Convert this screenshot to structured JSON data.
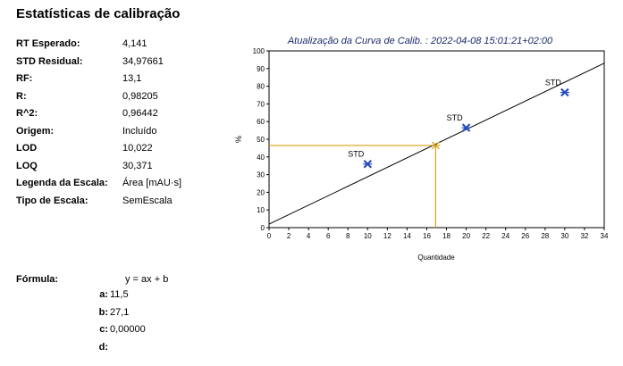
{
  "page_title": "Estatísticas de calibração",
  "stats": [
    {
      "label": "RT Esperado:",
      "value": "4,141"
    },
    {
      "label": "STD Residual:",
      "value": "34,97661"
    },
    {
      "label": "RF:",
      "value": "13,1"
    },
    {
      "label": "R:",
      "value": "0,98205"
    },
    {
      "label": "R^2:",
      "value": "0,96442"
    },
    {
      "label": "Origem:",
      "value": "Incluído"
    },
    {
      "label": "LOD",
      "value": "10,022"
    },
    {
      "label": "LOQ",
      "value": "30,371"
    },
    {
      "label": "Legenda da Escala:",
      "value": "Área [mAU·s]"
    },
    {
      "label": "Tipo de Escala:",
      "value": "SemEscala"
    }
  ],
  "formula": {
    "label": "Fórmula:",
    "expression": "y = ax + b",
    "coefficients": [
      {
        "name": "a:",
        "value": "11,5"
      },
      {
        "name": "b:",
        "value": "27,1"
      },
      {
        "name": "c:",
        "value": "0,00000"
      },
      {
        "name": "d:",
        "value": ""
      }
    ]
  },
  "chart_data": {
    "type": "scatter",
    "title": "Atualização da Curva de Calib. : 2022-04-08 15:01:21+02:00",
    "xlabel": "Quantidade",
    "ylabel": "%",
    "xlim": [
      0,
      34
    ],
    "ylim": [
      0,
      100
    ],
    "xticks": [
      0,
      2,
      4,
      6,
      8,
      10,
      12,
      14,
      16,
      18,
      20,
      22,
      24,
      26,
      28,
      30,
      32,
      34
    ],
    "yticks": [
      0,
      10,
      20,
      30,
      40,
      50,
      60,
      70,
      80,
      90,
      100
    ],
    "grid": false,
    "series": [
      {
        "name": "STD",
        "points": [
          [
            10,
            36
          ],
          [
            20,
            56.5
          ],
          [
            30,
            76.5
          ]
        ],
        "color": "#2b4fb8"
      }
    ],
    "point_labels": [
      "STD",
      "STD",
      "STD"
    ],
    "fit_line": {
      "x": [
        0,
        34
      ],
      "y": [
        2,
        93
      ]
    },
    "unknown_point": {
      "x": 16.9,
      "y": 46.5
    },
    "unknown_color": "#d4a017",
    "line_color": "#000000"
  }
}
